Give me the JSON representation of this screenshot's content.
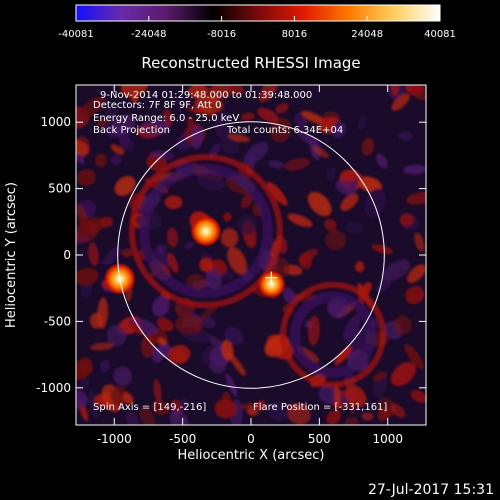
{
  "chart_data": {
    "type": "heatmap",
    "title": "Reconstructed RHESSI Image",
    "xlabel": "Heliocentric X (arcsec)",
    "ylabel": "Heliocentric Y (arcsec)",
    "xlim": [
      -1280,
      1280
    ],
    "ylim": [
      -1280,
      1280
    ],
    "x_ticks": [
      -1000,
      -500,
      0,
      500,
      1000
    ],
    "y_ticks": [
      1000,
      500,
      0,
      -500,
      -1000
    ],
    "colorbar": {
      "min": -40081,
      "max": 40081,
      "tick_values": [
        -40081,
        -24048,
        -8016,
        8016,
        24048,
        40081
      ],
      "tick_labels": [
        "-40081",
        "-24048",
        "-8016",
        "8016",
        "24048",
        "40081"
      ],
      "colors": [
        "#1010ff",
        "#6a2aa8",
        "#5a1a6a",
        "#000000",
        "#7a0a0a",
        "#e01a00",
        "#ff7a00",
        "#ffd060",
        "#ffffff"
      ]
    },
    "solar_limb_radius_arcsec": 975,
    "sources": [
      {
        "x": -960,
        "y": -180,
        "intensity": 40081
      },
      {
        "x": -330,
        "y": 180,
        "intensity": 38000
      },
      {
        "x": 150,
        "y": -220,
        "intensity": 30000
      }
    ],
    "annotations": {
      "time_range": "9-Nov-2014 01:29:48.000 to 01:39:48.000",
      "detectors": "Detectors: 7F 8F 9F, Att 0",
      "energy_range": "Energy Range: 6.0 - 25.0 keV",
      "method": "Back Projection",
      "total_counts": "Total counts: 6.34E+04",
      "spin_axis": "Spin Axis = [149,-216]",
      "flare_position": "Flare Position = [-331,161]"
    },
    "marker": {
      "x": 149,
      "y": -216,
      "symbol": "+"
    }
  },
  "footer": {
    "timestamp": "27-Jul-2017 15:31"
  },
  "colors": {
    "background": "#000000",
    "foreground": "#ffffff"
  }
}
